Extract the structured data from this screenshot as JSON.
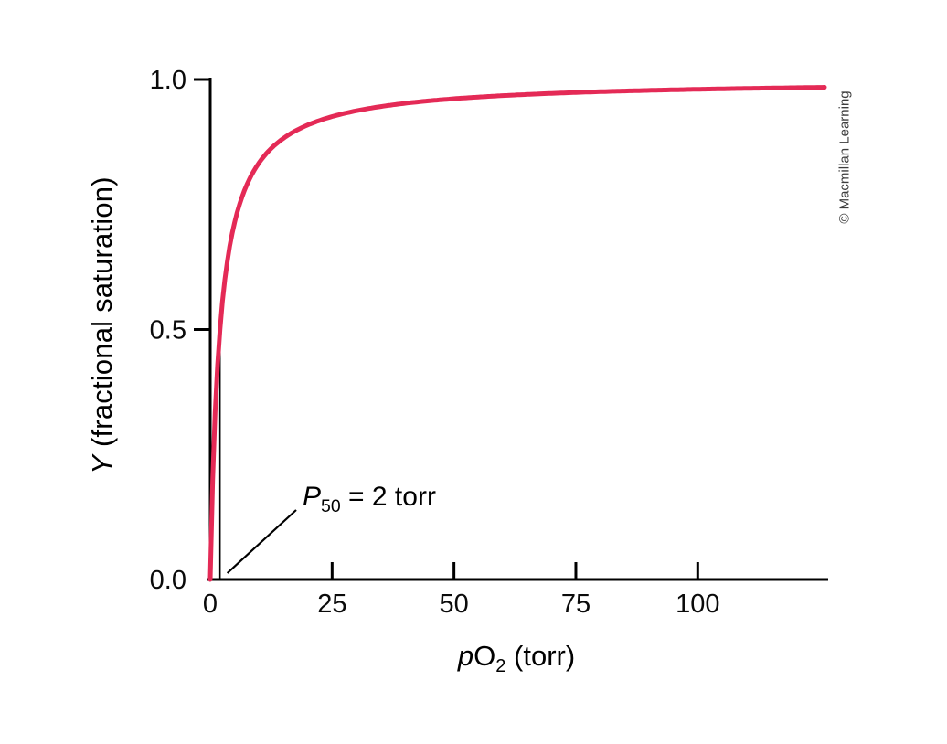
{
  "figure": {
    "credit": "© Macmillan Learning",
    "background_color": "#ffffff",
    "axis_color": "#000000"
  },
  "chart_data": {
    "type": "line",
    "title": "",
    "xlabel": "pO2 (torr)",
    "ylabel": "Y (fractional saturation)",
    "xlabel_parts": {
      "italic": "p",
      "main": "O",
      "sub": "2",
      "rest": " (torr)"
    },
    "ylabel_parts": {
      "italic": "Y",
      "rest": " (fractional saturation)"
    },
    "xlim": [
      0,
      126
    ],
    "ylim": [
      0,
      1.0
    ],
    "x_ticks": [
      0,
      25,
      50,
      75,
      100
    ],
    "x_tick_labels": [
      "0",
      "25",
      "50",
      "75",
      "100"
    ],
    "y_ticks": [
      0,
      0.5,
      1.0
    ],
    "y_tick_labels": [
      "0.0",
      "0.5",
      "1.0"
    ],
    "grid": false,
    "legend_position": "none",
    "curve_color": "#e42a56",
    "series": [
      {
        "p50_torr": 2,
        "x": [
          0,
          1,
          2,
          3,
          5,
          7.5,
          10,
          15,
          20,
          25,
          40,
          50,
          75,
          100,
          126
        ],
        "y": [
          0,
          0.333,
          0.5,
          0.6,
          0.714,
          0.789,
          0.833,
          0.882,
          0.909,
          0.926,
          0.952,
          0.962,
          0.974,
          0.98,
          0.984
        ]
      }
    ],
    "annotation": {
      "text": "P50 = 2 torr",
      "parts": {
        "italic": "P",
        "sub": "50",
        "rest": " = 2 torr"
      },
      "marks_x_torr": 2,
      "marks_y": 0.5
    }
  }
}
